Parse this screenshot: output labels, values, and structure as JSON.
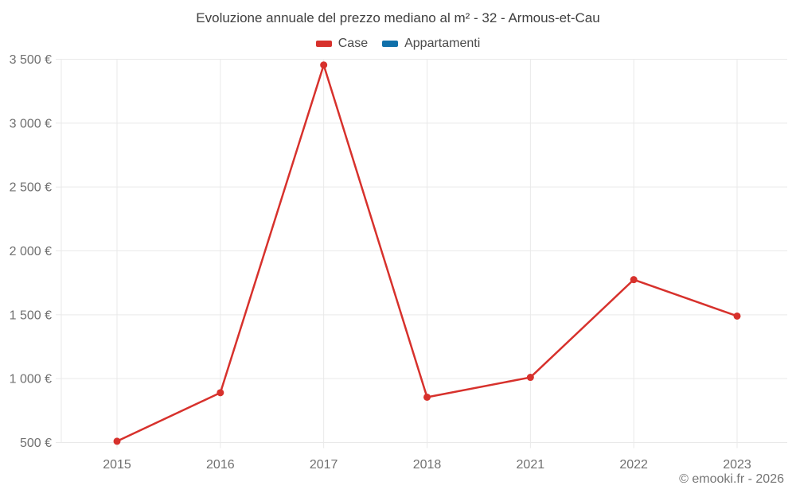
{
  "page": {
    "footer": "© emooki.fr - 2026"
  },
  "colors": {
    "case_red": "#d7312c",
    "appartamenti_blue": "#1070aa",
    "grid": "#e9e9e9",
    "axis_text": "#707070",
    "title_text": "#3f3f3f",
    "legend_text": "#4a4a4a",
    "footer_text": "#757575",
    "background": "#ffffff"
  },
  "chart_data": {
    "type": "line",
    "title": "Evoluzione annuale del prezzo mediano al m² - 32 - Armous-et-Cau",
    "categories": [
      "2015",
      "2016",
      "2017",
      "2018",
      "2021",
      "2022",
      "2023"
    ],
    "series": [
      {
        "name": "Case",
        "color": "#d7312c",
        "values": [
          510,
          890,
          3455,
          855,
          1010,
          1775,
          1490
        ]
      },
      {
        "name": "Appartamenti",
        "color": "#1070aa",
        "values": []
      }
    ],
    "xlabel": "",
    "ylabel": "",
    "unit": "€",
    "ylim": [
      500,
      3500
    ],
    "y_ticks": [
      {
        "value": 500,
        "label": "500 €"
      },
      {
        "value": 1000,
        "label": "1 000 €"
      },
      {
        "value": 1500,
        "label": "1 500 €"
      },
      {
        "value": 2000,
        "label": "2 000 €"
      },
      {
        "value": 2500,
        "label": "2 500 €"
      },
      {
        "value": 3000,
        "label": "3 000 €"
      },
      {
        "value": 3500,
        "label": "3 500 €"
      }
    ],
    "grid": true,
    "legend_position": "top"
  }
}
